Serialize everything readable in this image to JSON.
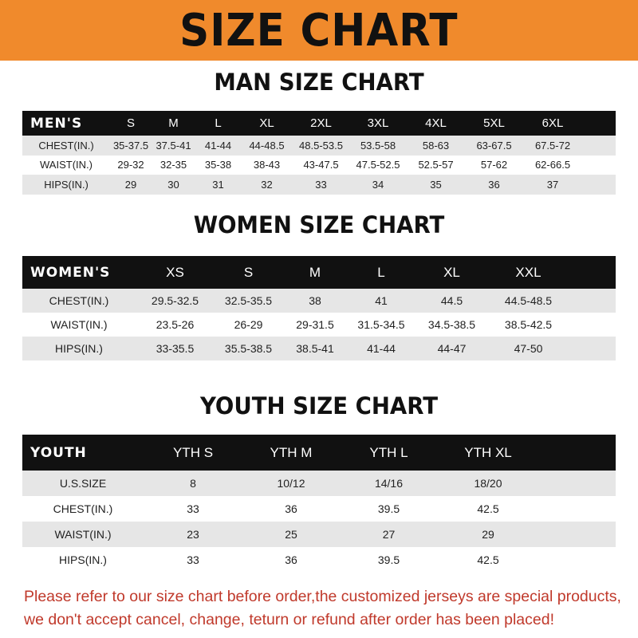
{
  "banner_title": "SIZE CHART",
  "men": {
    "title": "MAN SIZE CHART",
    "header": [
      "MEN'S",
      "S",
      "M",
      "L",
      "XL",
      "2XL",
      "3XL",
      "4XL",
      "5XL",
      "6XL"
    ],
    "rows": [
      [
        "CHEST(IN.)",
        "35-37.5",
        "37.5-41",
        "41-44",
        "44-48.5",
        "48.5-53.5",
        "53.5-58",
        "58-63",
        "63-67.5",
        "67.5-72"
      ],
      [
        "WAIST(IN.)",
        "29-32",
        "32-35",
        "35-38",
        "38-43",
        "43-47.5",
        "47.5-52.5",
        "52.5-57",
        "57-62",
        "62-66.5"
      ],
      [
        "HIPS(IN.)",
        "29",
        "30",
        "31",
        "32",
        "33",
        "34",
        "35",
        "36",
        "37"
      ]
    ]
  },
  "women": {
    "title": "WOMEN SIZE CHART",
    "header": [
      "WOMEN'S",
      "XS",
      "S",
      "M",
      "L",
      "XL",
      "XXL"
    ],
    "rows": [
      [
        "CHEST(IN.)",
        "29.5-32.5",
        "32.5-35.5",
        "38",
        "41",
        "44.5",
        "44.5-48.5"
      ],
      [
        "WAIST(IN.)",
        "23.5-26",
        "26-29",
        "29-31.5",
        "31.5-34.5",
        "34.5-38.5",
        "38.5-42.5"
      ],
      [
        "HIPS(IN.)",
        "33-35.5",
        "35.5-38.5",
        "38.5-41",
        "41-44",
        "44-47",
        "47-50"
      ]
    ]
  },
  "youth": {
    "title": "YOUTH SIZE CHART",
    "header": [
      "YOUTH",
      "YTH S",
      "YTH M",
      "YTH L",
      "YTH XL"
    ],
    "rows": [
      [
        "U.S.SIZE",
        "8",
        "10/12",
        "14/16",
        "18/20"
      ],
      [
        "CHEST(IN.)",
        "33",
        "36",
        "39.5",
        "42.5"
      ],
      [
        "WAIST(IN.)",
        "23",
        "25",
        "27",
        "29"
      ],
      [
        "HIPS(IN.)",
        "33",
        "36",
        "39.5",
        "42.5"
      ]
    ]
  },
  "note": {
    "line1": "Please refer to our size chart before order,the customized jerseys are special products,",
    "line2": "we don't accept cancel, change, teturn or refund after order has been placed!"
  },
  "colors": {
    "banner": "#f08a2c",
    "header_row": "#111111",
    "alt_row": "#e6e6e6",
    "note": "#c0392b"
  }
}
